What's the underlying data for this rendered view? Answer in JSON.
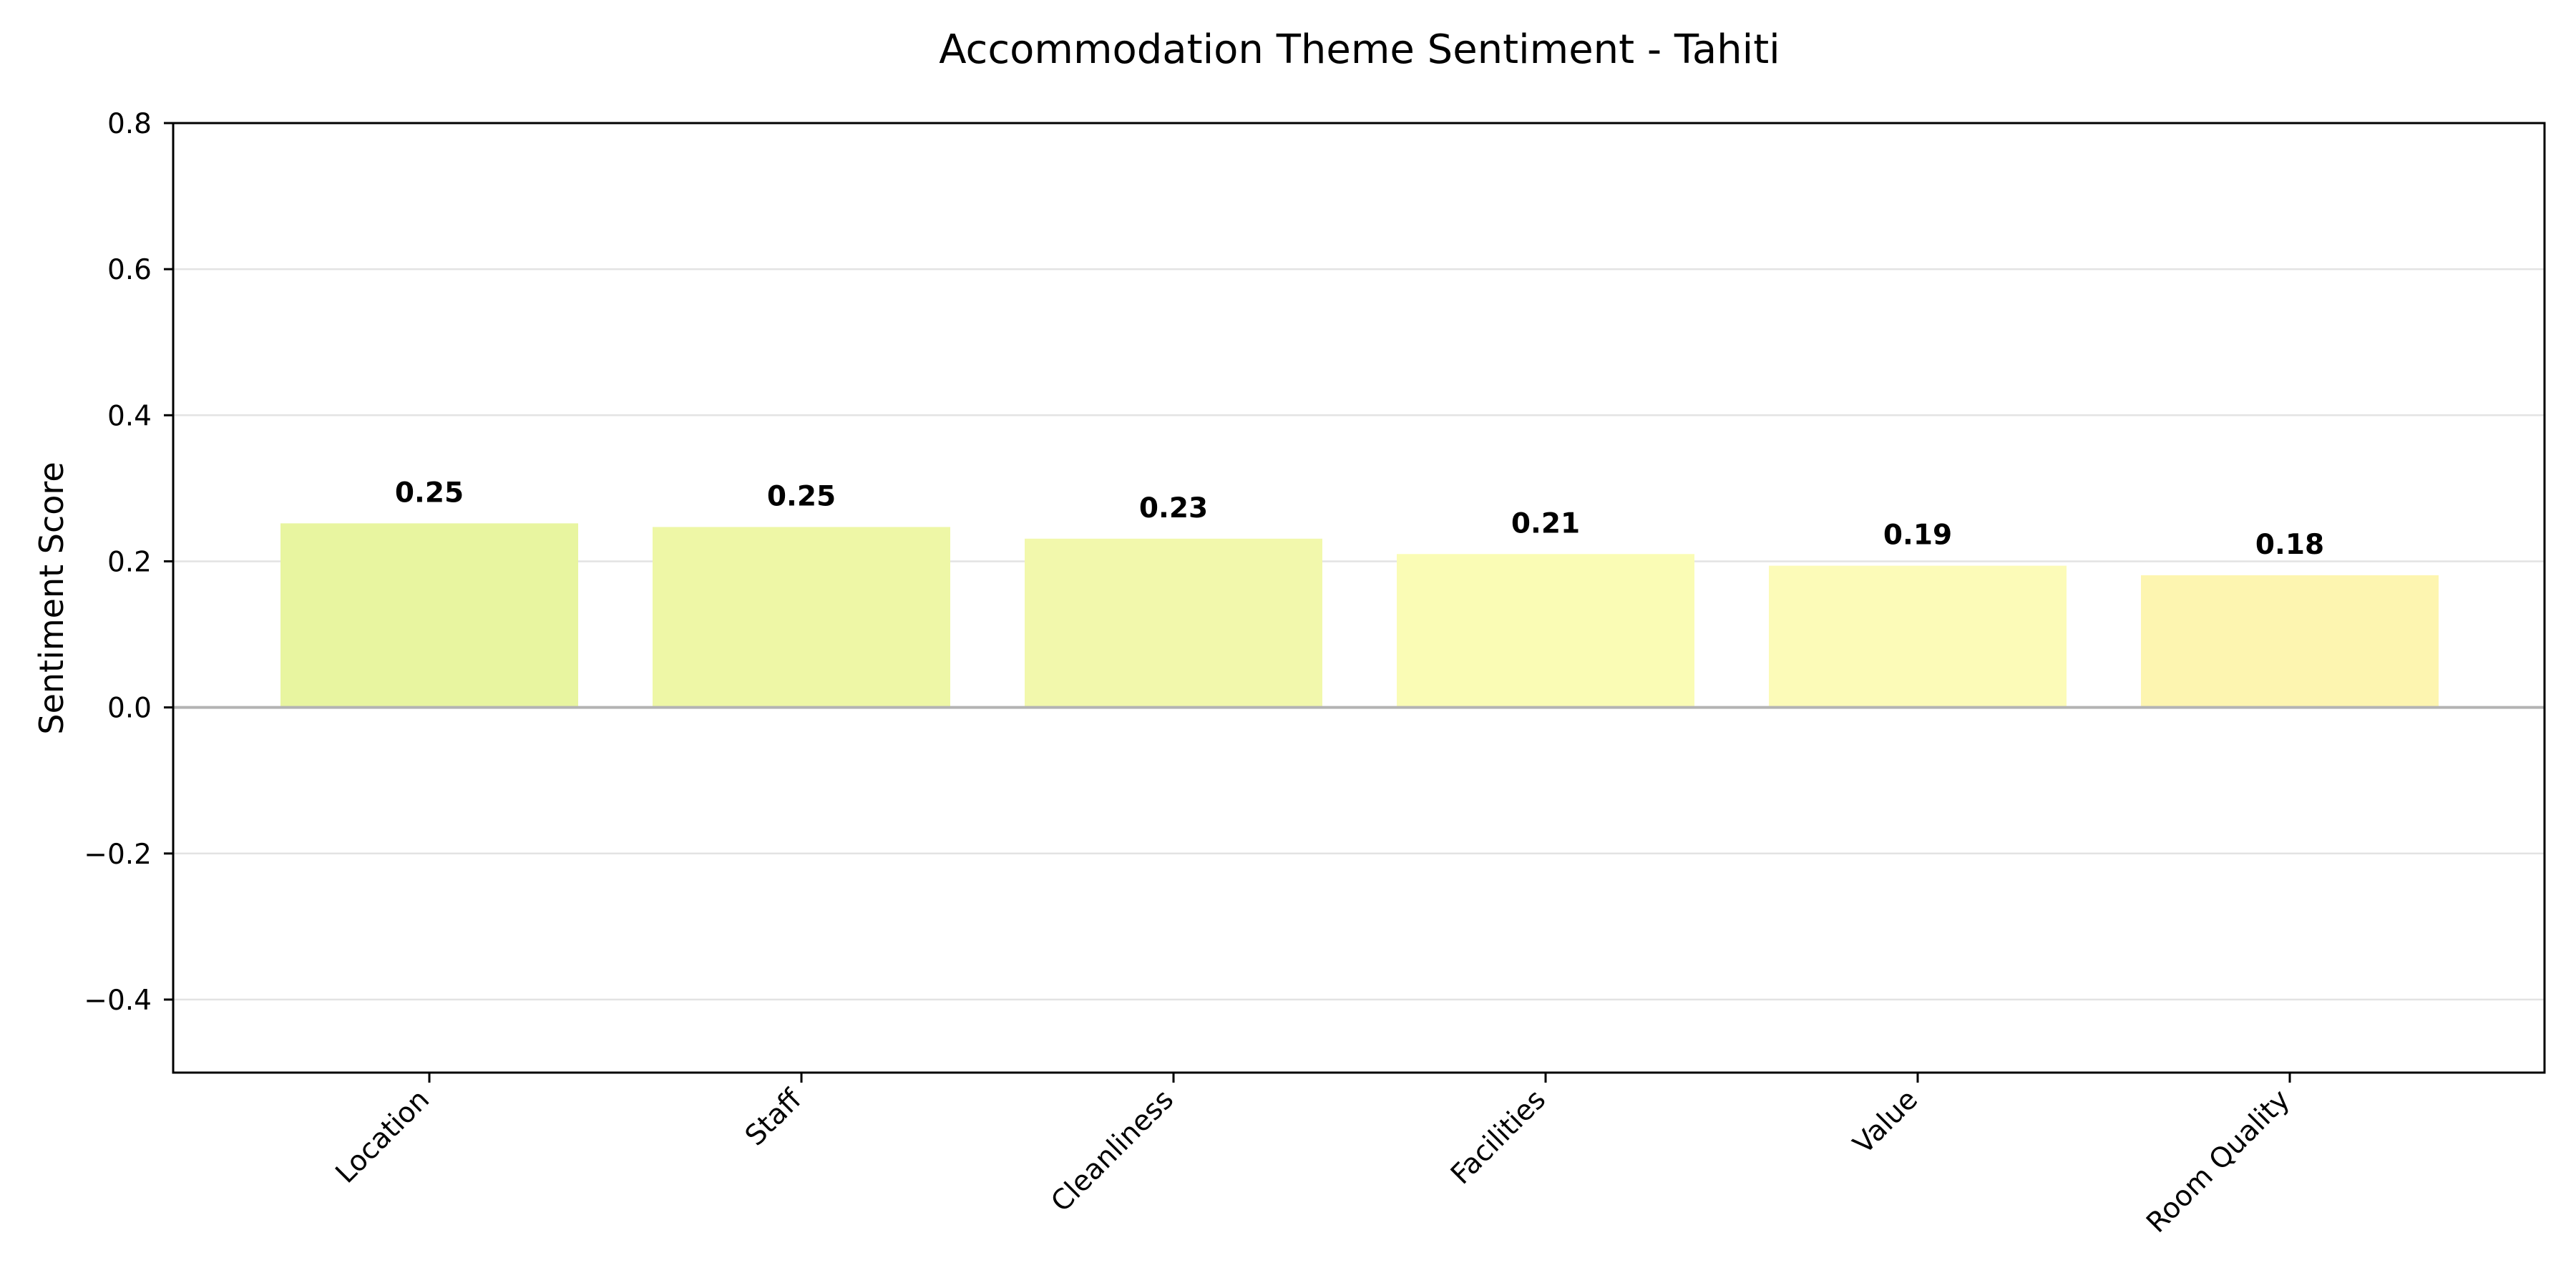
{
  "chart_data": {
    "type": "bar",
    "title": "Accommodation Theme Sentiment - Tahiti",
    "xlabel": "",
    "ylabel": "Sentiment Score",
    "categories": [
      "Location",
      "Staff",
      "Cleanliness",
      "Facilities",
      "Value",
      "Room Quality"
    ],
    "values": [
      0.252,
      0.247,
      0.231,
      0.21,
      0.194,
      0.181
    ],
    "value_labels": [
      "0.25",
      "0.25",
      "0.23",
      "0.21",
      "0.19",
      "0.18"
    ],
    "bar_colors": [
      "#e8f5a0",
      "#eef7a6",
      "#f2f8ac",
      "#fafcb5",
      "#fcfbb8",
      "#fdf5b0"
    ],
    "ylim": [
      -0.5,
      0.8
    ],
    "yticks": [
      0.8,
      0.6,
      0.4,
      0.2,
      0.0,
      -0.2,
      -0.4
    ],
    "ytick_labels": [
      "0.8",
      "0.6",
      "0.4",
      "0.2",
      "0.0",
      "−0.2",
      "−0.4"
    ],
    "grid": true,
    "zero_line": true,
    "legend": "none"
  }
}
